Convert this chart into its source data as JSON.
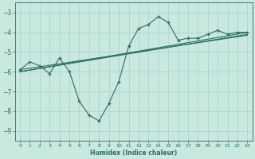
{
  "xlabel": "Humidex (Indice chaleur)",
  "ylabel": "",
  "xlim": [
    -0.5,
    23.5
  ],
  "ylim": [
    -9.5,
    -2.5
  ],
  "yticks": [
    -9,
    -8,
    -7,
    -6,
    -5,
    -4,
    -3
  ],
  "xticks": [
    0,
    1,
    2,
    3,
    4,
    5,
    6,
    7,
    8,
    9,
    10,
    11,
    12,
    13,
    14,
    15,
    16,
    17,
    18,
    19,
    20,
    21,
    22,
    23
  ],
  "bg_color": "#c8e8e0",
  "line_color": "#2a6e62",
  "grid_color": "#b0d8ce",
  "series_main": {
    "x": [
      0,
      1,
      2,
      3,
      4,
      5,
      6,
      7,
      8,
      9,
      10,
      11,
      12,
      13,
      14,
      15,
      16,
      17,
      18,
      19,
      20,
      21,
      22,
      23
    ],
    "y": [
      -5.9,
      -5.5,
      -5.7,
      -6.1,
      -5.3,
      -6.0,
      -7.5,
      -8.2,
      -8.5,
      -7.6,
      -6.5,
      -4.7,
      -3.8,
      -3.6,
      -3.2,
      -3.5,
      -4.4,
      -4.3,
      -4.3,
      -4.1,
      -3.9,
      -4.1,
      -4.0,
      -4.0
    ]
  },
  "series_line1": {
    "x": [
      0,
      23
    ],
    "y": [
      -6.0,
      -4.0
    ]
  },
  "series_line2": {
    "x": [
      0,
      23
    ],
    "y": [
      -6.0,
      -4.1
    ]
  },
  "series_line3": {
    "x": [
      0,
      23
    ],
    "y": [
      -5.9,
      -4.15
    ]
  }
}
